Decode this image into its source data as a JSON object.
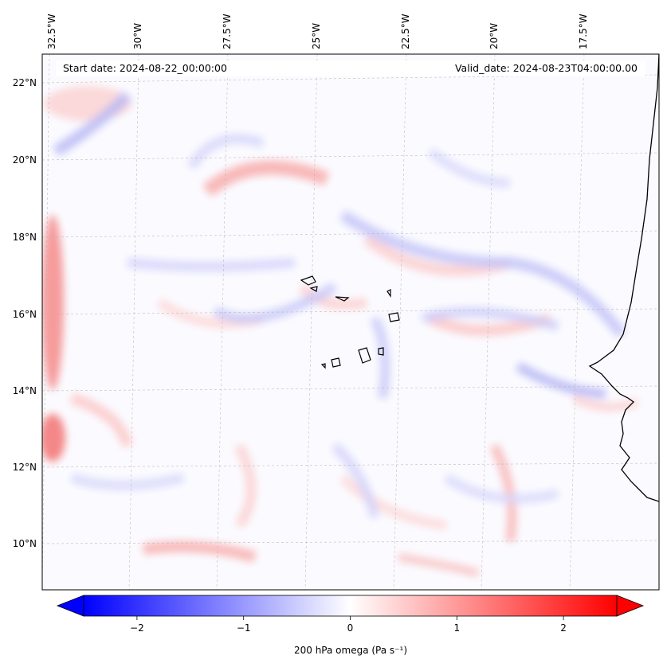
{
  "map": {
    "header_left": "Start date: 2024-08-22_00:00:00",
    "header_right": "Valid_date: 2024-08-23T04:00:00.00",
    "lon_labels": [
      "32.5°W",
      "30°W",
      "27.5°W",
      "25°W",
      "22.5°W",
      "20°W",
      "17.5°W"
    ],
    "lat_labels": [
      "22°N",
      "20°N",
      "18°N",
      "16°N",
      "14°N",
      "12°N",
      "10°N"
    ],
    "extent": {
      "lon_min": -32.6,
      "lon_max": -15.1,
      "lat_min": 8.9,
      "lat_max": 22.7
    },
    "gridlines": true,
    "field": "200 hPa omega",
    "colormap": "bwr",
    "positive_color": "#ff0000",
    "negative_color": "#0000ff",
    "coastline_color": "#000000"
  },
  "colorbar": {
    "label": "200 hPa omega (Pa s⁻¹)",
    "ticks": [
      "−2",
      "−1",
      "0",
      "1",
      "2"
    ],
    "tick_values": [
      -2,
      -1,
      0,
      1,
      2
    ],
    "range": [
      -2.5,
      2.5
    ],
    "extend": "both"
  }
}
